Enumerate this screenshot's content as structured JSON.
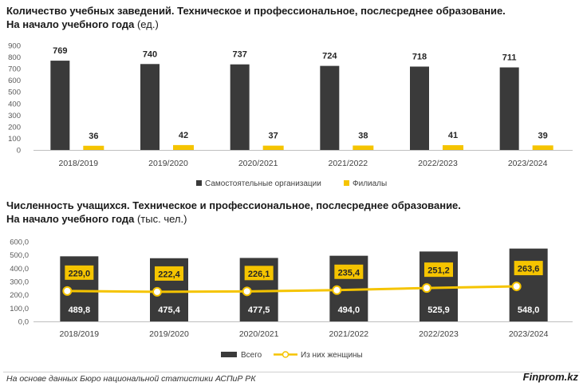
{
  "chart_data": [
    {
      "type": "bar",
      "title": "Количество учебных заведений. Техническое и профессиональное, послесреднее образование.",
      "subtitle_bold": "На начало учебного года",
      "subtitle_unit": " (ед.)",
      "categories": [
        "2018/2019",
        "2019/2020",
        "2020/2021",
        "2021/2022",
        "2022/2023",
        "2023/2024"
      ],
      "series": [
        {
          "name": "Самостоятельные организации",
          "color": "#3a3a3a",
          "values": [
            769,
            740,
            737,
            724,
            718,
            711
          ]
        },
        {
          "name": "Филиалы",
          "color": "#f5c400",
          "values": [
            36,
            42,
            37,
            38,
            41,
            39
          ]
        }
      ],
      "ylim": [
        0,
        900
      ],
      "yticks": [
        "0",
        "100",
        "200",
        "300",
        "400",
        "500",
        "600",
        "700",
        "800",
        "900"
      ],
      "value_labels_1": [
        "769",
        "740",
        "737",
        "724",
        "718",
        "711"
      ],
      "value_labels_2": [
        "36",
        "42",
        "37",
        "38",
        "41",
        "39"
      ],
      "legend": "bottom",
      "grid": false
    },
    {
      "type": "bar",
      "title": "Численность учащихся. Техническое и профессиональное, послесреднее образование.",
      "subtitle_bold": "На начало учебного года",
      "subtitle_unit": " (тыс. чел.)",
      "categories": [
        "2018/2019",
        "2019/2020",
        "2020/2021",
        "2021/2022",
        "2022/2023",
        "2023/2024"
      ],
      "series": [
        {
          "name": "Всего",
          "type": "bar",
          "color": "#3a3a3a",
          "values": [
            489.8,
            475.4,
            477.5,
            494.0,
            525.9,
            548.0
          ]
        },
        {
          "name": "Из них женщины",
          "type": "line",
          "color": "#f5c400",
          "values": [
            229.0,
            222.4,
            226.1,
            235.4,
            251.2,
            263.6
          ]
        }
      ],
      "ylim": [
        0,
        600
      ],
      "yticks": [
        "0,0",
        "100,0",
        "200,0",
        "300,0",
        "400,0",
        "500,0",
        "600,0"
      ],
      "value_labels_1": [
        "489,8",
        "475,4",
        "477,5",
        "494,0",
        "525,9",
        "548,0"
      ],
      "value_labels_2": [
        "229,0",
        "222,4",
        "226,1",
        "235,4",
        "251,2",
        "263,6"
      ],
      "legend": "bottom",
      "grid": false
    }
  ],
  "footer": {
    "source": "На основе данных Бюро национальной статистики АСПиР РК",
    "brand": "Finprom.kz"
  }
}
